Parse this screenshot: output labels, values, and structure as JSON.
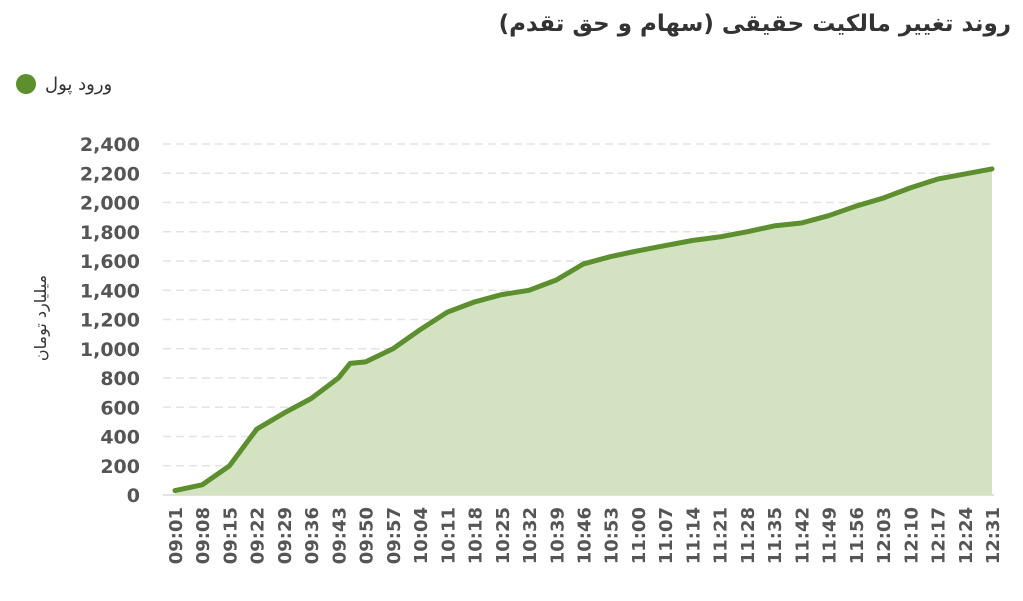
{
  "chart_data": {
    "type": "area",
    "title": "روند تغییر مالکیت حقیقی (سهام و حق تقدم)",
    "ylabel": "میلیارد تومان",
    "xlabel": "",
    "ylim": [
      0,
      2400
    ],
    "y_ticks": [
      0,
      200,
      400,
      600,
      800,
      1000,
      1200,
      1400,
      1600,
      1800,
      2000,
      2200,
      2400
    ],
    "y_tick_labels": [
      "0",
      "200",
      "400",
      "600",
      "800",
      "1,000",
      "1,200",
      "1,400",
      "1,600",
      "1,800",
      "2,000",
      "2,200",
      "2,400"
    ],
    "x_tick_labels": [
      "09:01",
      "09:08",
      "09:15",
      "09:22",
      "09:29",
      "09:36",
      "09:43",
      "09:50",
      "09:57",
      "10:04",
      "10:11",
      "10:18",
      "10:25",
      "10:32",
      "10:39",
      "10:46",
      "10:53",
      "11:00",
      "11:07",
      "11:14",
      "11:21",
      "11:28",
      "11:35",
      "11:42",
      "11:49",
      "11:56",
      "12:03",
      "12:10",
      "12:17",
      "12:24",
      "12:31"
    ],
    "grid": true,
    "legend_position": "top-left",
    "series": [
      {
        "name": "ورود پول",
        "color": "#5d8f2f",
        "fill": "#d3e3c2",
        "values": [
          [
            0,
            30
          ],
          [
            7,
            70
          ],
          [
            14,
            200
          ],
          [
            21,
            450
          ],
          [
            28,
            560
          ],
          [
            35,
            660
          ],
          [
            42,
            800
          ],
          [
            45,
            900
          ],
          [
            49,
            910
          ],
          [
            56,
            1000
          ],
          [
            63,
            1130
          ],
          [
            70,
            1250
          ],
          [
            77,
            1320
          ],
          [
            84,
            1370
          ],
          [
            91,
            1400
          ],
          [
            98,
            1470
          ],
          [
            105,
            1580
          ],
          [
            112,
            1630
          ],
          [
            119,
            1670
          ],
          [
            126,
            1705
          ],
          [
            133,
            1740
          ],
          [
            140,
            1765
          ],
          [
            147,
            1800
          ],
          [
            154,
            1840
          ],
          [
            161,
            1860
          ],
          [
            168,
            1910
          ],
          [
            175,
            1975
          ],
          [
            182,
            2030
          ],
          [
            189,
            2100
          ],
          [
            196,
            2160
          ],
          [
            210,
            2230
          ]
        ]
      }
    ]
  }
}
